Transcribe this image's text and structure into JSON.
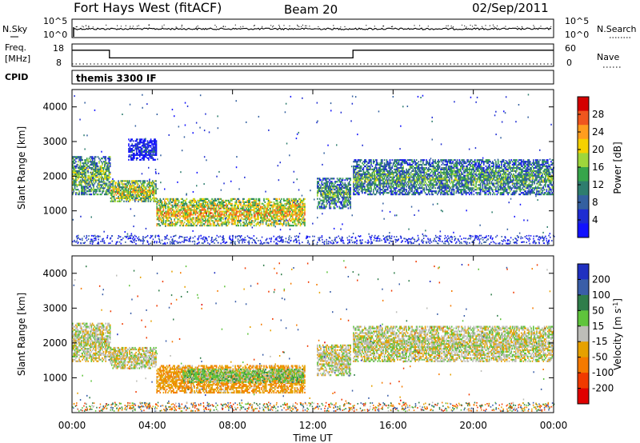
{
  "header": {
    "station": "Fort Hays West (fitACF)",
    "beam": "Beam 20",
    "date": "02/Sep/2011"
  },
  "noise_panel": {
    "left_label": "N.Sky",
    "left_ticks": [
      "10^5",
      "10^0"
    ],
    "right_label": "N.Search",
    "right_ticks": [
      "10^5",
      "10^0"
    ]
  },
  "freq_panel": {
    "left_label_line1": "Freq.",
    "left_label_line2": "[MHz]",
    "left_ticks": [
      "18",
      "8"
    ],
    "right_label": "Nave",
    "right_ticks": [
      "60",
      "0"
    ]
  },
  "cpid_panel": {
    "label": "CPID",
    "text": "themis 3300 IF"
  },
  "power_panel": {
    "ylabel": "Slant Range [km]",
    "colorbar_label": "Power [dB]",
    "colorbar_ticks": [
      "28",
      "24",
      "20",
      "16",
      "12",
      "8",
      "4"
    ],
    "colorbar_colors": [
      "#d40000",
      "#f0561e",
      "#ff9d1e",
      "#f5d100",
      "#9ed63b",
      "#37a54b",
      "#2e7d6e",
      "#3460a0",
      "#1e2cd2",
      "#1212ff"
    ]
  },
  "velocity_panel": {
    "ylabel": "Slant Range [km]",
    "colorbar_label": "Velocity [m s^-1]",
    "colorbar_ticks": [
      "200",
      "100",
      "50",
      "15",
      "-15",
      "-50",
      "-100",
      "-200"
    ],
    "colorbar_colors": [
      "#2030c0",
      "#3a5ea8",
      "#2f7d4a",
      "#5fc43c",
      "#bdbdb8",
      "#e6a100",
      "#f57a00",
      "#f03a00",
      "#e00000"
    ]
  },
  "xaxis": {
    "label": "Time UT",
    "ticks": [
      "00:00",
      "04:00",
      "08:00",
      "12:00",
      "16:00",
      "20:00",
      "00:00"
    ]
  },
  "chart_data": [
    {
      "type": "line",
      "title": "Fort Hays West (fitACF)",
      "panel": "noise",
      "ylabel": "N.Sky",
      "ylim": [
        "10^0",
        "10^5"
      ],
      "x": [
        "00:00",
        "04:00",
        "08:00",
        "12:00",
        "16:00",
        "20:00",
        "00:00"
      ],
      "note": "sky noise roughly constant near 10^5 level"
    },
    {
      "type": "line",
      "panel": "frequency",
      "ylabel": "Freq. [MHz]",
      "ylim": [
        8,
        18
      ],
      "series": [
        {
          "name": "Freq.",
          "x": [
            "00:00",
            "01:52",
            "01:52",
            "14:00",
            "14:00",
            "24:00"
          ],
          "values": [
            16,
            16,
            12,
            12,
            16,
            16
          ]
        },
        {
          "name": "Nave",
          "x": [
            "00:00",
            "24:00"
          ],
          "values": [
            10,
            10
          ]
        }
      ]
    },
    {
      "type": "heatmap",
      "panel": "power",
      "xlabel": "Time UT",
      "ylabel": "Slant Range [km]",
      "xlim": [
        "00:00",
        "24:00"
      ],
      "ylim": [
        0,
        4500
      ],
      "zlabel": "Power [dB]",
      "zlim": [
        0,
        30
      ],
      "bands": [
        {
          "t_start": 0.0,
          "t_end": 1.9,
          "range_lo": 1500,
          "range_hi": 2600,
          "power": 16
        },
        {
          "t_start": 1.9,
          "t_end": 4.2,
          "range_lo": 1300,
          "range_hi": 1900,
          "power": 20
        },
        {
          "t_start": 2.8,
          "t_end": 4.2,
          "range_lo": 2500,
          "range_hi": 3100,
          "power": 6
        },
        {
          "t_start": 4.2,
          "t_end": 11.6,
          "range_lo": 600,
          "range_hi": 1400,
          "power": 22
        },
        {
          "t_start": 12.2,
          "t_end": 13.9,
          "range_lo": 1100,
          "range_hi": 2000,
          "power": 14
        },
        {
          "t_start": 14.0,
          "t_end": 24.0,
          "range_lo": 1500,
          "range_hi": 2500,
          "power": 14
        }
      ]
    },
    {
      "type": "heatmap",
      "panel": "velocity",
      "xlabel": "Time UT",
      "ylabel": "Slant Range [km]",
      "xlim": [
        "00:00",
        "24:00"
      ],
      "ylim": [
        0,
        4500
      ],
      "zlabel": "Velocity [m s^-1]",
      "zlim": [
        -200,
        200
      ],
      "bands": [
        {
          "t_start": 0.0,
          "t_end": 1.9,
          "range_lo": 1500,
          "range_hi": 2600,
          "velocity": 0
        },
        {
          "t_start": 1.9,
          "t_end": 4.2,
          "range_lo": 1300,
          "range_hi": 1900,
          "velocity": 0
        },
        {
          "t_start": 4.2,
          "t_end": 11.6,
          "range_lo": 600,
          "range_hi": 1400,
          "velocity": -40
        },
        {
          "t_start": 5.5,
          "t_end": 11.5,
          "range_lo": 900,
          "range_hi": 1300,
          "velocity": 30
        },
        {
          "t_start": 12.2,
          "t_end": 13.9,
          "range_lo": 1100,
          "range_hi": 2000,
          "velocity": 0
        },
        {
          "t_start": 14.0,
          "t_end": 24.0,
          "range_lo": 1500,
          "range_hi": 2500,
          "velocity": 0
        }
      ]
    }
  ]
}
